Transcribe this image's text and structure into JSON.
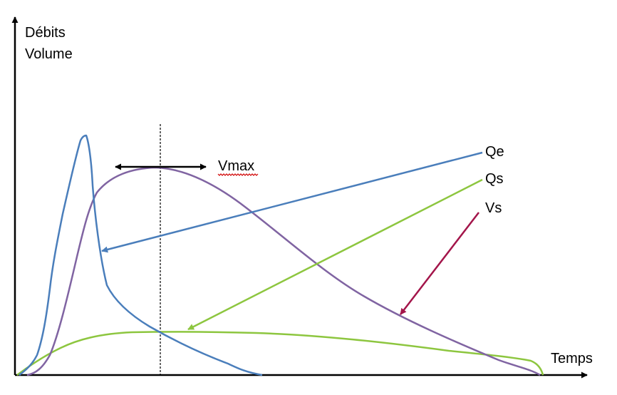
{
  "axes": {
    "y_label_line1": "Débits",
    "y_label_line2": "Volume",
    "x_label": "Temps"
  },
  "annotation": {
    "vmax_label": "Vmax"
  },
  "series": [
    {
      "id": "qe",
      "name": "Qe",
      "color": "#4a7ebb"
    },
    {
      "id": "qs",
      "name": "Qs",
      "color": "#8dc63f"
    },
    {
      "id": "vs",
      "name": "Vs",
      "color": "#8064a2"
    }
  ],
  "colors": {
    "axis": "#000000",
    "vs_pointer": "#a3154a"
  }
}
